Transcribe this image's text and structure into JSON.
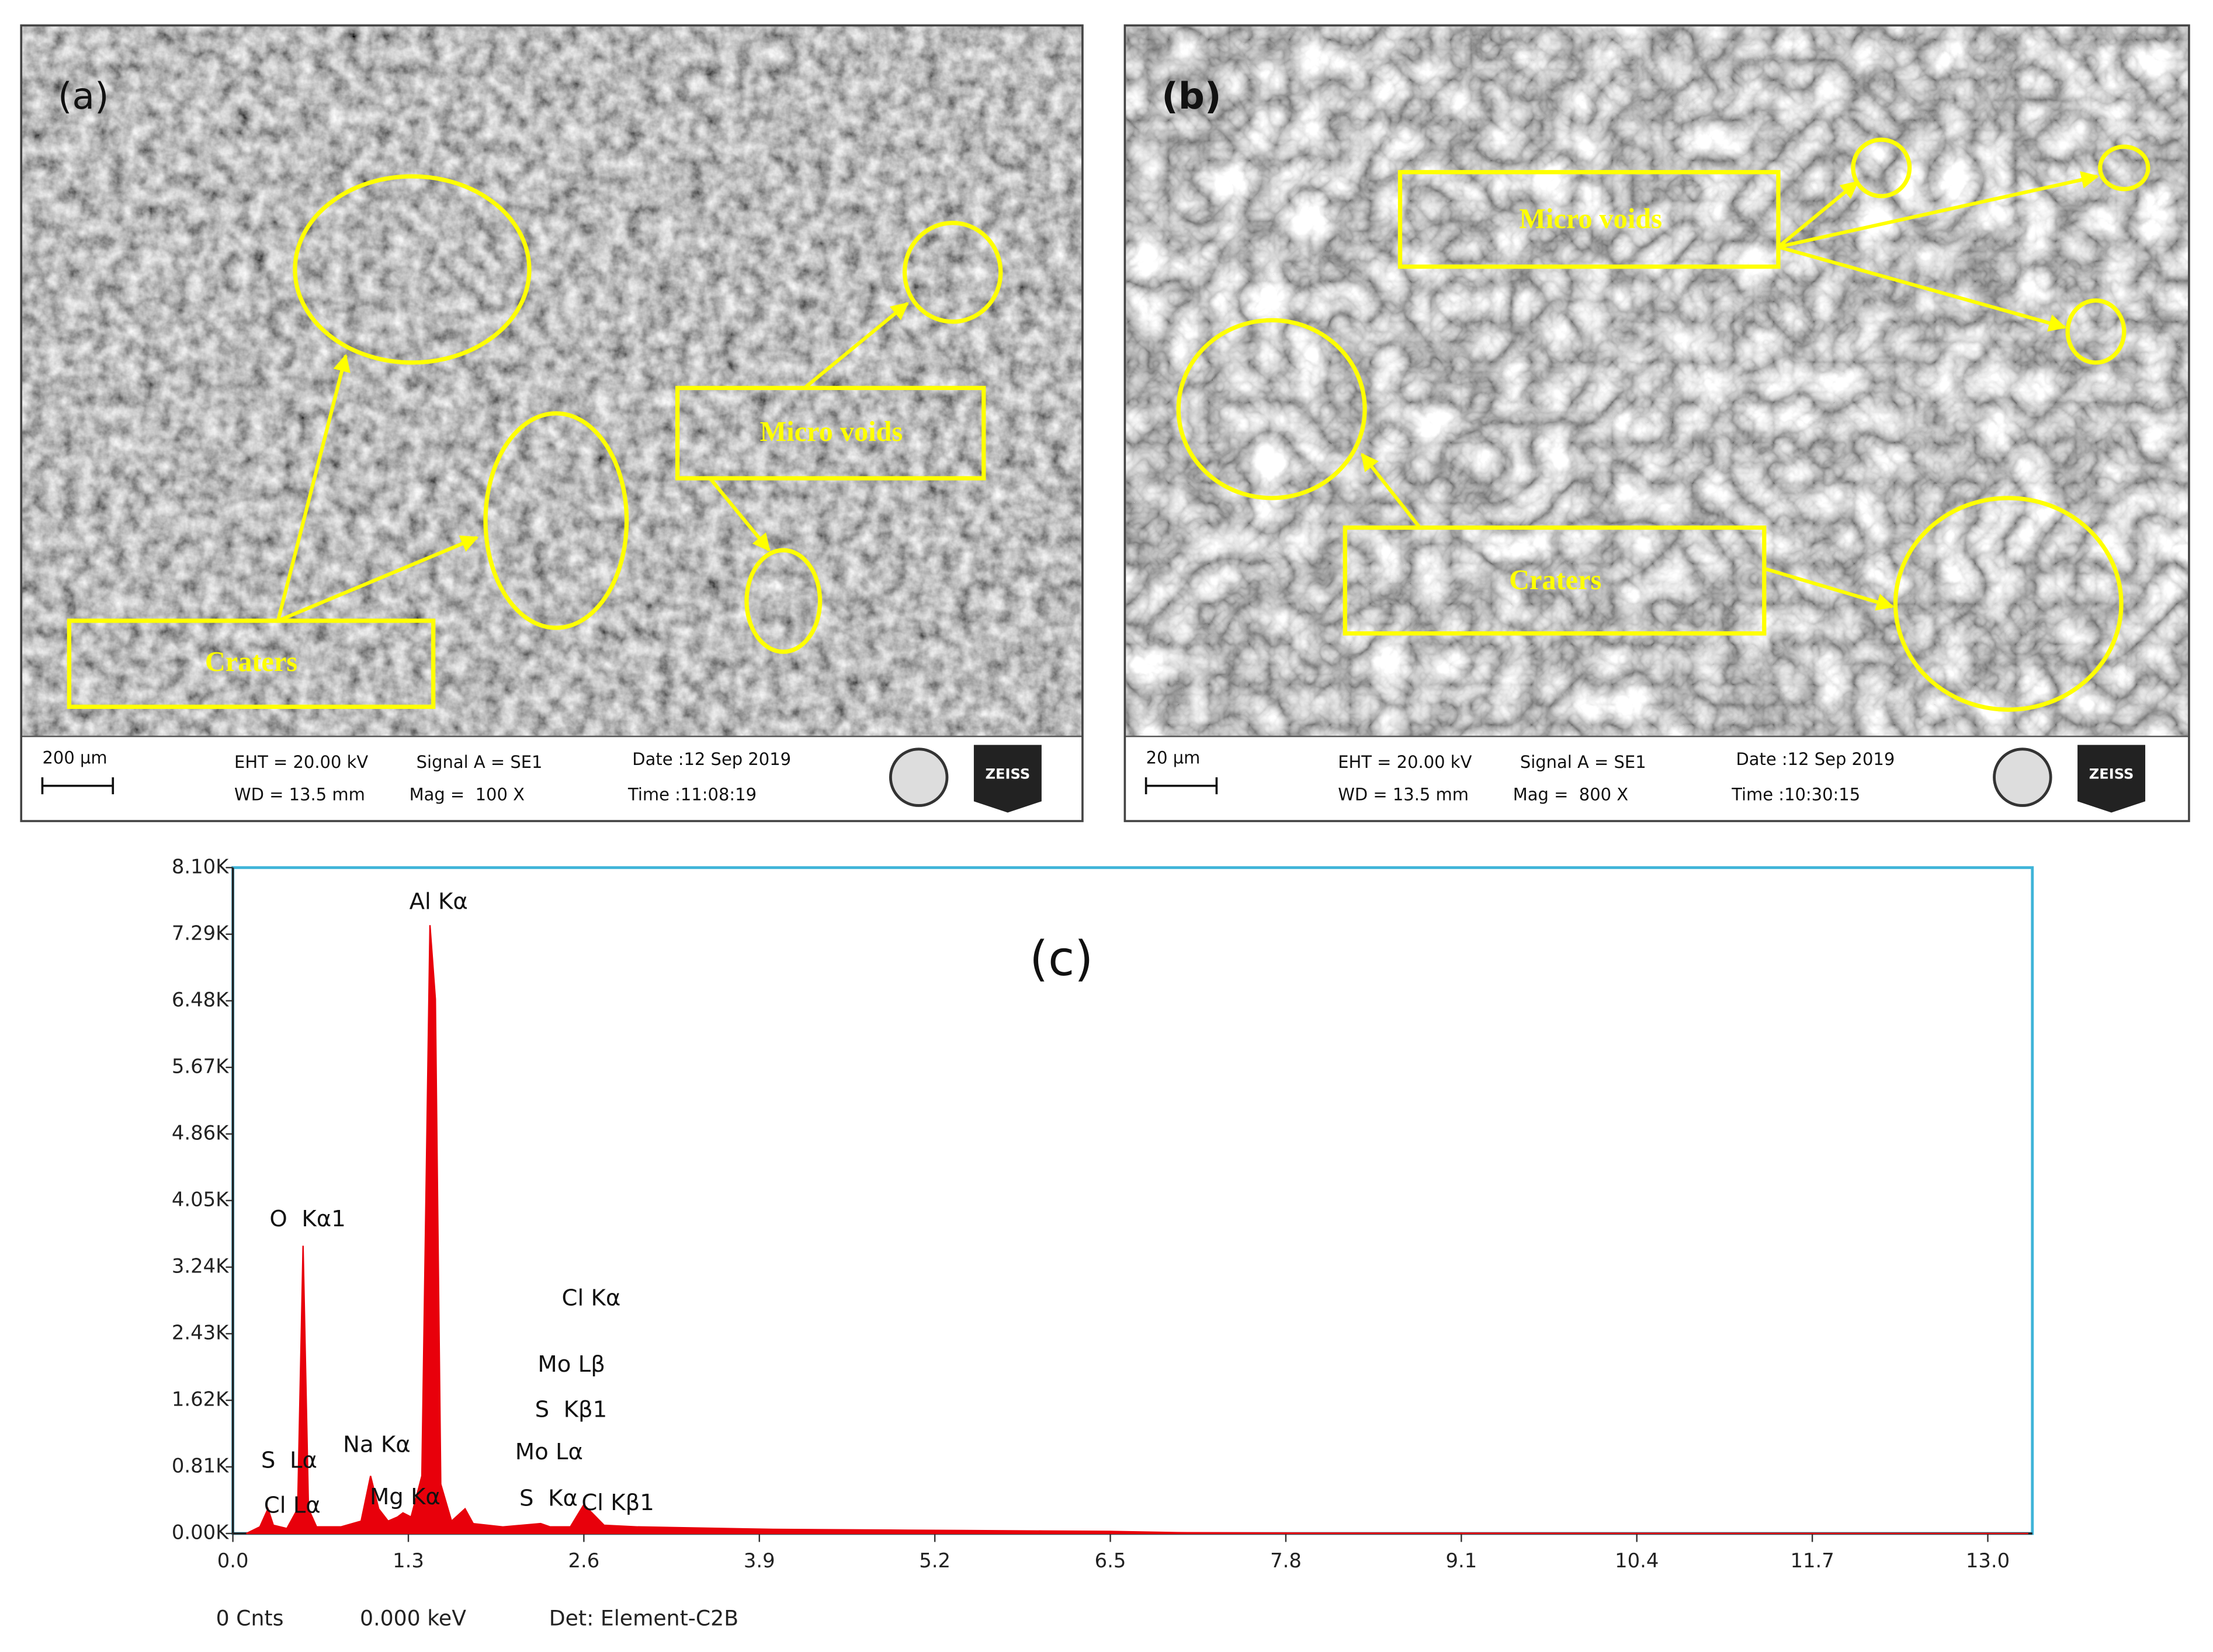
{
  "panels": [
    {
      "label": "(a)",
      "annotations": [
        "Craters",
        "Micro voids"
      ],
      "scale_bar": "200 µm",
      "info": [
        "EHT = 20.00 kV",
        "WD = 13.5 mm",
        "Signal A = SE1",
        "Mag =  100 X",
        "Date :12 Sep 2019",
        "Time :11:08:19"
      ],
      "logo": "ZEISS"
    },
    {
      "label": "(b)",
      "annotations": [
        "Micro voids",
        "Craters"
      ],
      "scale_bar": "20 µm",
      "info": [
        "EHT = 20.00 kV",
        "WD = 13.5 mm",
        "Signal A = SE1",
        "Mag =  800 X",
        "Date :12 Sep 2019",
        "Time :10:30:15"
      ],
      "logo": "ZEISS"
    }
  ],
  "chart_data": {
    "type": "area",
    "label": "(c)",
    "x": [
      0.1,
      0.2,
      0.26,
      0.3,
      0.4,
      0.48,
      0.52,
      0.56,
      0.62,
      0.8,
      0.95,
      1.02,
      1.08,
      1.15,
      1.22,
      1.26,
      1.32,
      1.4,
      1.46,
      1.5,
      1.54,
      1.62,
      1.72,
      1.78,
      2.0,
      2.28,
      2.35,
      2.5,
      2.6,
      2.66,
      2.75,
      3.0,
      4.0,
      5.0,
      6.0,
      6.5,
      7.0,
      8.0,
      10.0,
      13.3
    ],
    "values": [
      0,
      80,
      300,
      100,
      60,
      300,
      3500,
      300,
      80,
      80,
      150,
      700,
      300,
      150,
      200,
      250,
      200,
      700,
      7400,
      6500,
      600,
      150,
      300,
      120,
      80,
      120,
      80,
      80,
      350,
      250,
      100,
      80,
      50,
      40,
      30,
      25,
      10,
      5,
      3,
      0
    ],
    "color": "#e8000b",
    "xlim": [
      0,
      13.33
    ],
    "ylim": [
      0,
      8100
    ],
    "xticks": [
      {
        "value": 0,
        "label": "0.0"
      },
      1.3,
      2.6,
      3.9,
      5.2,
      6.5,
      7.8,
      9.1,
      10.4,
      11.7,
      {
        "value": 13,
        "label": "13.0"
      }
    ],
    "yticks": [
      {
        "value": 0,
        "label": "0.00K"
      },
      {
        "value": 810,
        "label": "0.81K"
      },
      {
        "value": 1620,
        "label": "1.62K"
      },
      {
        "value": 2430,
        "label": "2.43K"
      },
      {
        "value": 3240,
        "label": "3.24K"
      },
      {
        "value": 4050,
        "label": "4.05K"
      },
      {
        "value": 4860,
        "label": "4.86K"
      },
      {
        "value": 5670,
        "label": "5.67K"
      },
      {
        "value": 6480,
        "label": "6.48K"
      },
      {
        "value": 7290,
        "label": "7.29K"
      },
      {
        "value": 8100,
        "label": "8.10K"
      }
    ],
    "annotations": [
      "Al Kα",
      "O  Kα1",
      "Cl Kα",
      "Mo Lβ",
      "S  Kβ1",
      "S  Lα",
      "Na Kα",
      "Mo Lα",
      "Cl Lα",
      "Mg Kα",
      "S  Kα",
      "Cl Kβ1"
    ],
    "footer": [
      "0 Cnts",
      "0.000 keV",
      "Det: Element-C2B"
    ]
  }
}
